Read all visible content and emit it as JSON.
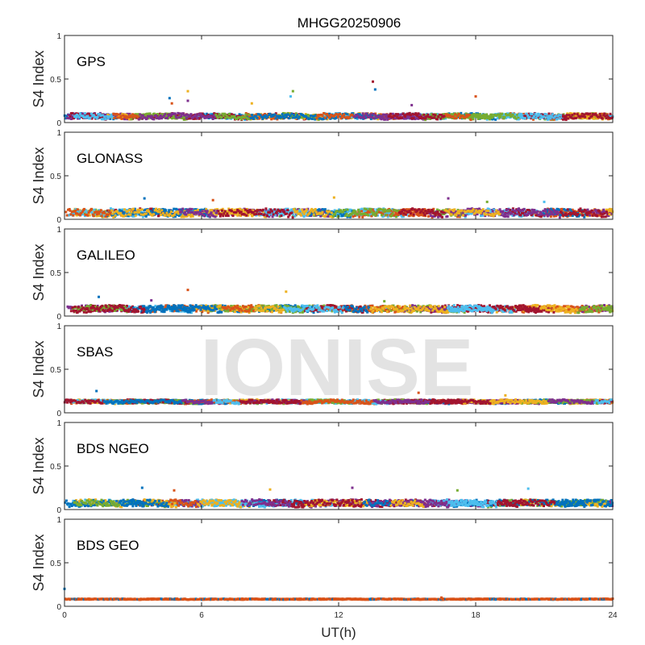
{
  "chart_data": {
    "type": "scatter",
    "title": "MHGG20250906",
    "xlabel": "UT(h)",
    "ylabel": "S4 Index",
    "xlim": [
      0,
      24
    ],
    "ylim": [
      0,
      1
    ],
    "xticks": [
      "0",
      "6",
      "12",
      "18",
      "24"
    ],
    "yticks": [
      "0",
      "0.5",
      "1"
    ],
    "watermark": "IONISE",
    "series_colors": [
      "#0072BD",
      "#D95319",
      "#EDB120",
      "#7E2F8E",
      "#77AC30",
      "#4DBEEE",
      "#A2142F"
    ],
    "panels": [
      {
        "name": "GPS",
        "base_level": 0.06,
        "spread": 0.06,
        "tracks": 4,
        "spikes": [
          [
            4.6,
            0.28
          ],
          [
            4.7,
            0.22
          ],
          [
            5.4,
            0.36
          ],
          [
            5.4,
            0.25
          ],
          [
            10,
            0.36
          ],
          [
            9.9,
            0.3
          ],
          [
            13.5,
            0.47
          ],
          [
            13.6,
            0.38
          ],
          [
            18,
            0.3
          ],
          [
            8.2,
            0.22
          ],
          [
            15.2,
            0.2
          ]
        ]
      },
      {
        "name": "GLONASS",
        "base_level": 0.06,
        "spread": 0.08,
        "tracks": 4,
        "spikes": [
          [
            3.5,
            0.24
          ],
          [
            6.5,
            0.22
          ],
          [
            11.8,
            0.25
          ],
          [
            16.8,
            0.24
          ],
          [
            18.5,
            0.2
          ],
          [
            21,
            0.2
          ]
        ]
      },
      {
        "name": "GALILEO",
        "base_level": 0.07,
        "spread": 0.07,
        "tracks": 4,
        "spikes": [
          [
            1.5,
            0.22
          ],
          [
            5.4,
            0.3
          ],
          [
            9.7,
            0.28
          ],
          [
            3.8,
            0.18
          ],
          [
            14,
            0.17
          ]
        ]
      },
      {
        "name": "SBAS",
        "base_level": 0.12,
        "spread": 0.04,
        "tracks": 5,
        "spikes": [
          [
            1.4,
            0.25
          ],
          [
            15.5,
            0.23
          ],
          [
            19.3,
            0.2
          ]
        ]
      },
      {
        "name": "BDS NGEO",
        "base_level": 0.06,
        "spread": 0.07,
        "tracks": 4,
        "spikes": [
          [
            3.4,
            0.25
          ],
          [
            4.8,
            0.22
          ],
          [
            9,
            0.23
          ],
          [
            12.6,
            0.25
          ],
          [
            17.2,
            0.22
          ],
          [
            20.3,
            0.24
          ]
        ]
      },
      {
        "name": "BDS GEO",
        "base_level": 0.08,
        "spread": 0.01,
        "tracks": 2,
        "spikes": [
          [
            0,
            0.2
          ],
          [
            16.5,
            0.1
          ]
        ]
      }
    ]
  }
}
